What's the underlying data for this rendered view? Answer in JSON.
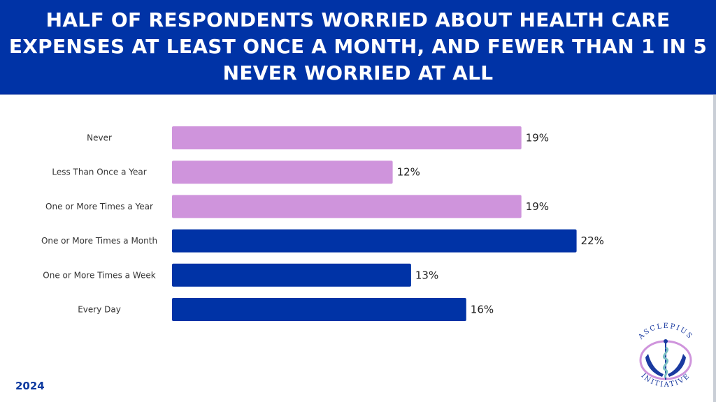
{
  "header": {
    "title": "HALF OF RESPONDENTS WORRIED ABOUT HEALTH CARE EXPENSES AT LEAST ONCE A MONTH, AND FEWER THAN 1 IN 5 NEVER WORRIED AT ALL"
  },
  "footer": {
    "year": "2024"
  },
  "logo": {
    "top_text": "ASCLEPIUS",
    "bottom_text": "INITIATIVE"
  },
  "colors": {
    "banner": "#0033a6",
    "light_bar": "#cf94dc",
    "dark_bar": "#0033a6"
  },
  "chart_data": {
    "type": "bar",
    "orientation": "horizontal",
    "title": "HALF OF RESPONDENTS WORRIED ABOUT HEALTH CARE EXPENSES AT LEAST ONCE A MONTH, AND FEWER THAN 1 IN 5 NEVER WORRIED AT ALL",
    "xlabel": "",
    "ylabel": "",
    "categories": [
      "Never",
      "Less Than Once a Year",
      "One or More Times a Year",
      "One or More Times a Month",
      "One or More Times a Week",
      "Every Day"
    ],
    "values": [
      19,
      12,
      19,
      22,
      13,
      16
    ],
    "value_labels": [
      "19%",
      "12%",
      "19%",
      "22%",
      "13%",
      "16%"
    ],
    "bar_colors": [
      "#cf94dc",
      "#cf94dc",
      "#cf94dc",
      "#0033a6",
      "#0033a6",
      "#0033a6"
    ],
    "xlim": [
      0,
      22
    ],
    "grid": false,
    "legend": "none"
  }
}
